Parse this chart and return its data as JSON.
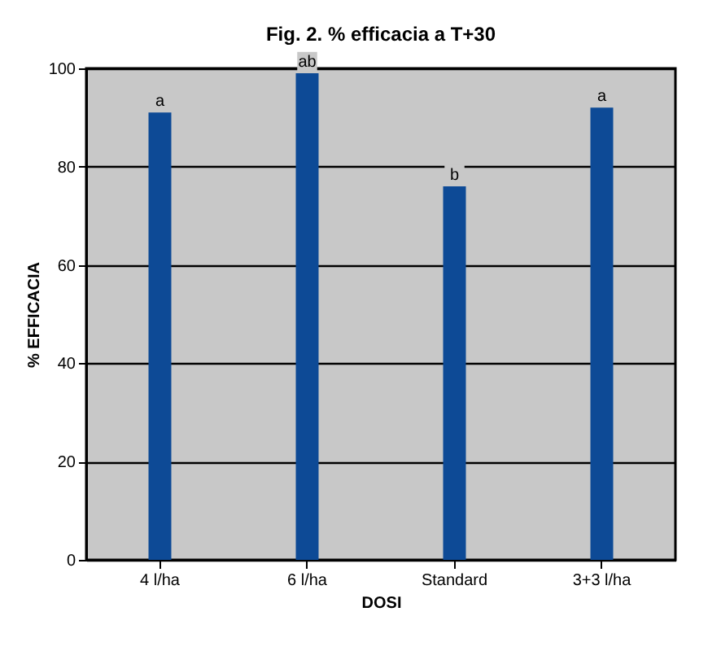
{
  "chart_data": {
    "type": "bar",
    "title": "Fig. 2. % efficacia a T+30",
    "xlabel": "DOSI",
    "ylabel": "% EFFICACIA",
    "categories": [
      "4 l/ha",
      "6 l/ha",
      "Standard",
      "3+3 l/ha"
    ],
    "values": [
      91,
      99,
      76,
      92
    ],
    "value_labels": [
      "a",
      "ab",
      "b",
      "a"
    ],
    "color": "#0d4a96",
    "ylim": [
      0,
      100
    ],
    "yticks": [
      0,
      20,
      40,
      60,
      80,
      100
    ],
    "grid": "y"
  }
}
